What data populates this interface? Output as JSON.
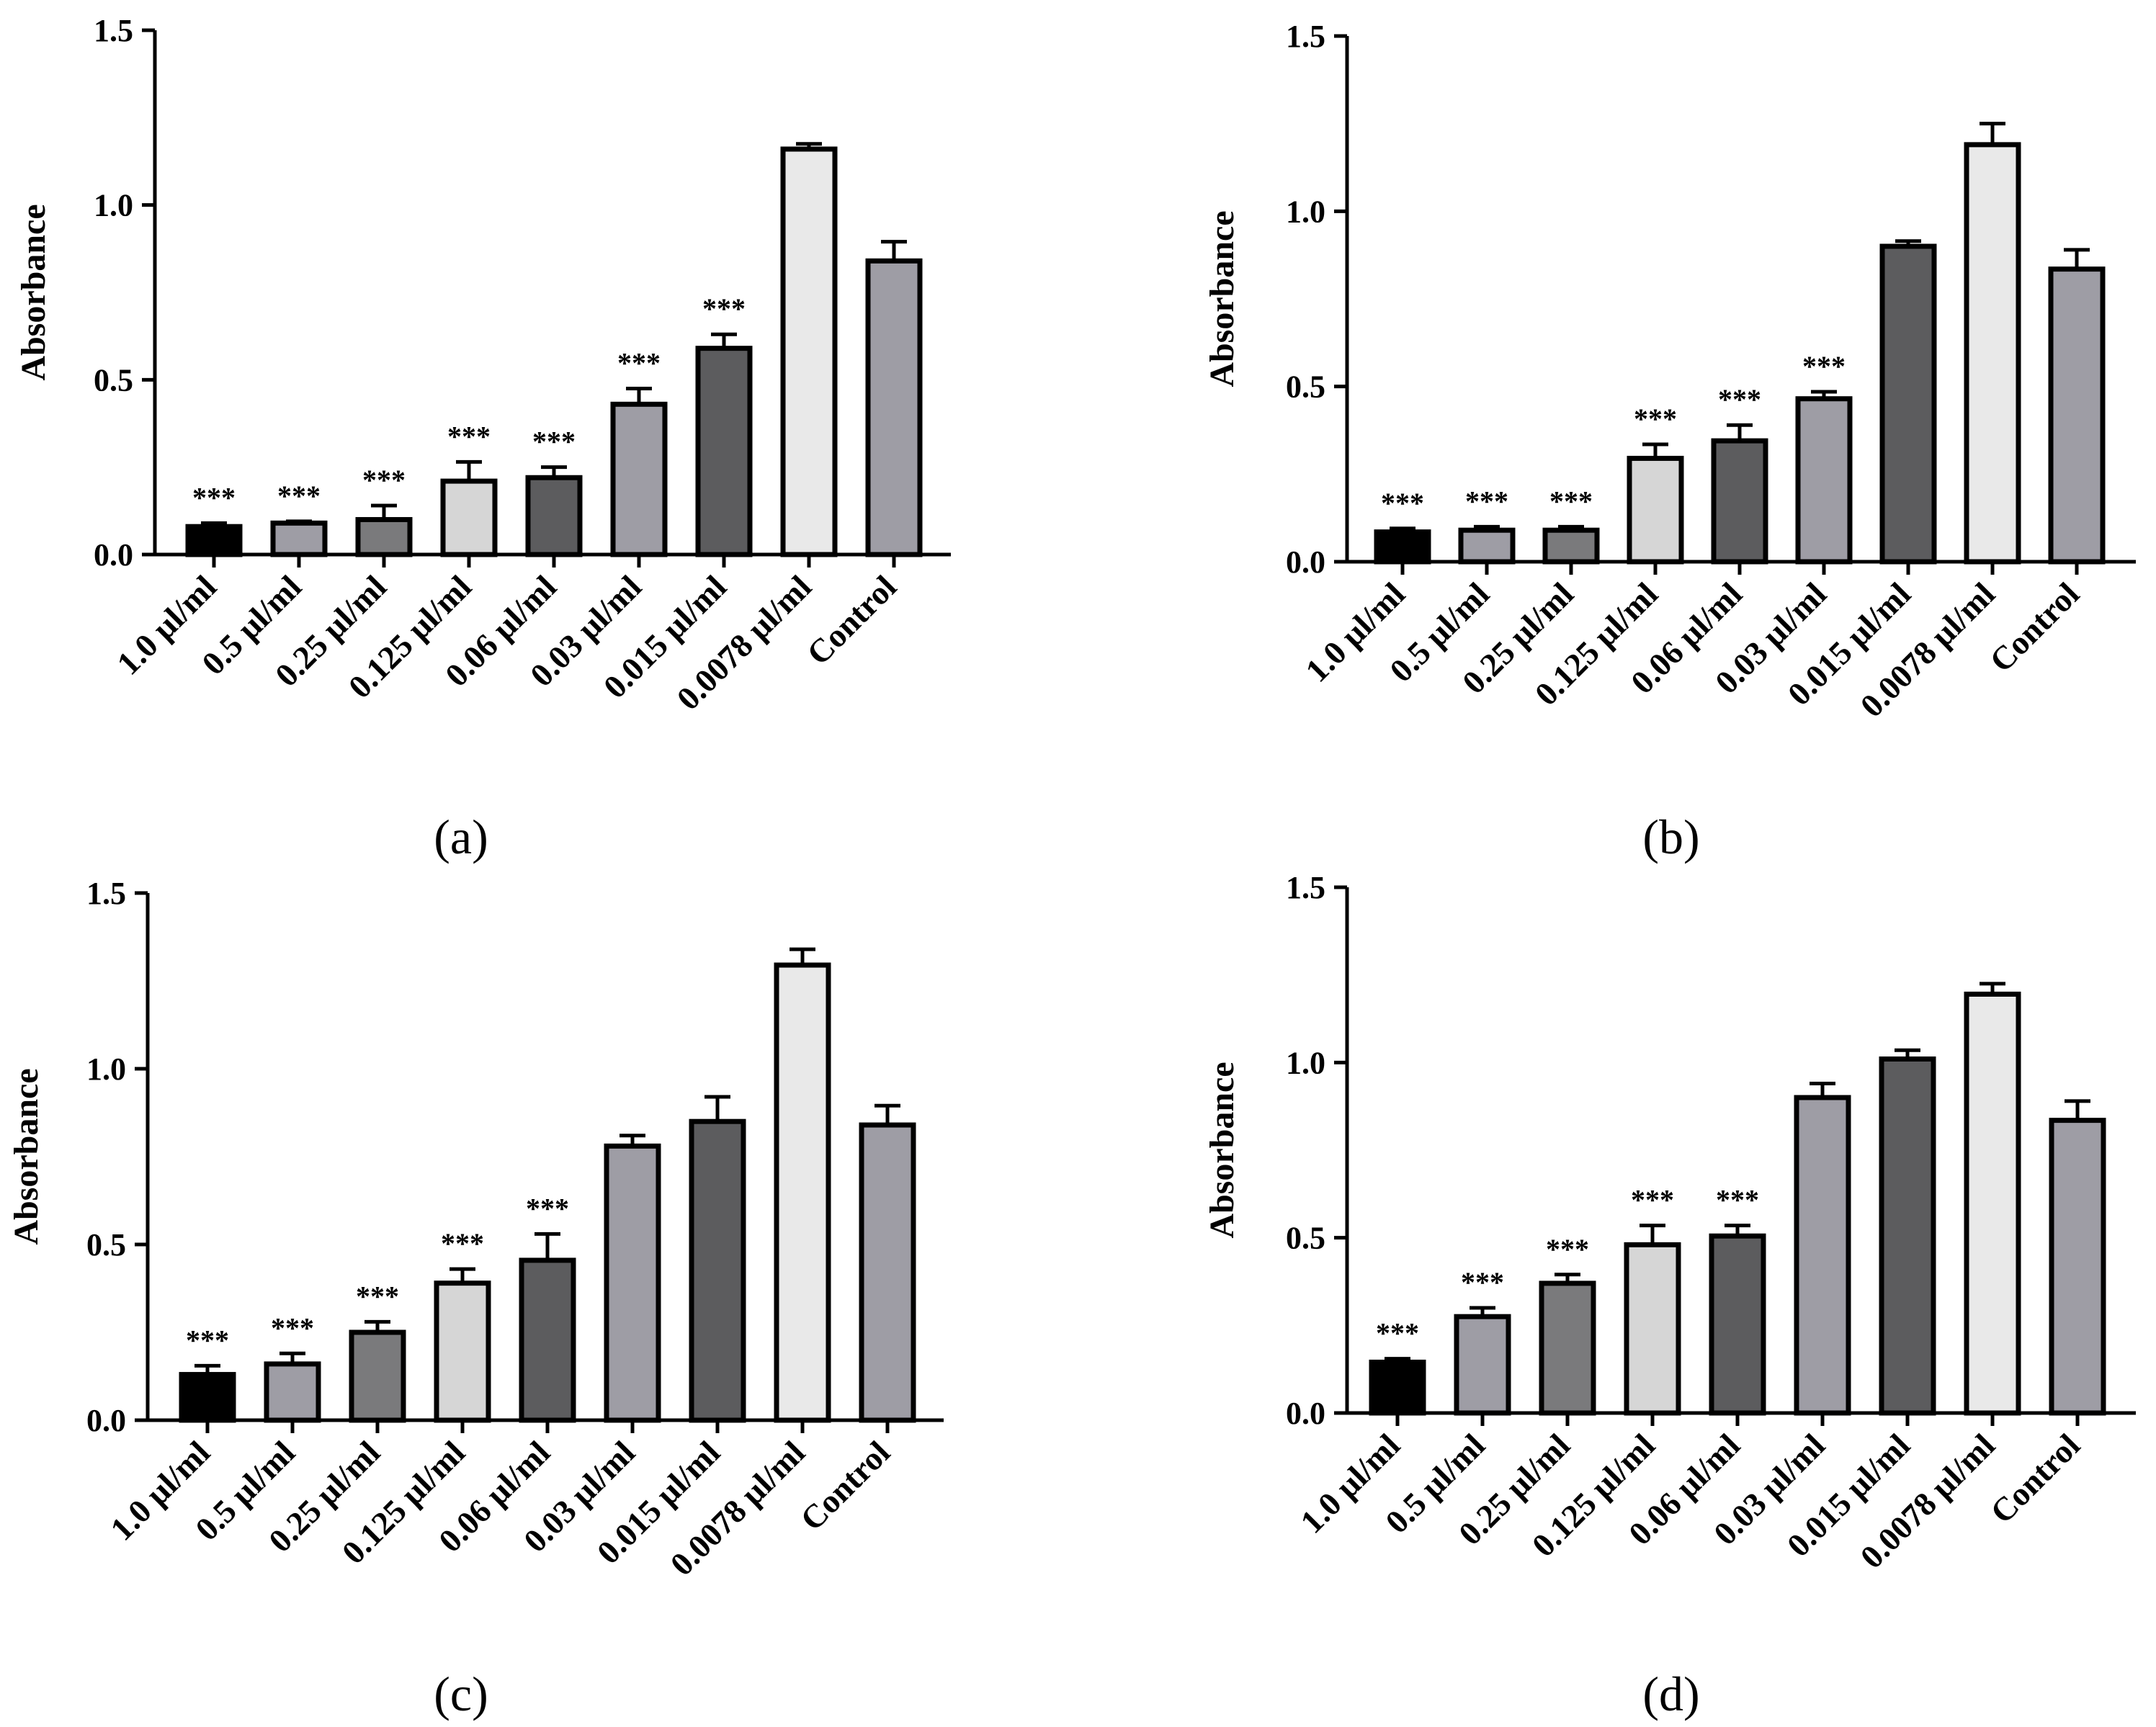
{
  "figure": {
    "colors": {
      "black": "#000000",
      "light_gray": "#9e9da5",
      "mid_gray": "#7a7a7c",
      "very_light": "#d6d6d6",
      "dark_gray": "#5c5c5e",
      "near_white": "#e9e9e9"
    }
  },
  "chart_data": [
    {
      "type": "bar",
      "panel": "(a)",
      "ylabel": "Absorbance",
      "ylim": [
        0,
        1.5
      ],
      "yticks": [
        "0.0",
        "0.5",
        "1.0",
        "1.5"
      ],
      "categories": [
        "1.0 µl/ml",
        "0.5 µl/ml",
        "0.25 µl/ml",
        "0.125 µl/ml",
        "0.06 µl/ml",
        "0.03 µl/ml",
        "0.015 µl/ml",
        "0.0078 µl/ml",
        "Control"
      ],
      "values": [
        0.08,
        0.09,
        0.1,
        0.21,
        0.22,
        0.43,
        0.59,
        1.16,
        0.84
      ],
      "errors": [
        0.01,
        0.005,
        0.04,
        0.055,
        0.03,
        0.045,
        0.04,
        0.015,
        0.055
      ],
      "significance": [
        "***",
        "***",
        "***",
        "***",
        "***",
        "***",
        "***",
        "",
        ""
      ],
      "fills": [
        "black",
        "light_gray",
        "mid_gray",
        "very_light",
        "dark_gray",
        "light_gray",
        "dark_gray",
        "near_white",
        "light_gray"
      ]
    },
    {
      "type": "bar",
      "panel": "(b)",
      "ylabel": "Absorbance",
      "ylim": [
        0,
        1.5
      ],
      "yticks": [
        "0.0",
        "0.5",
        "1.0",
        "1.5"
      ],
      "categories": [
        "1.0 µl/ml",
        "0.5 µl/ml",
        "0.25 µl/ml",
        "0.125 µl/ml",
        "0.06 µl/ml",
        "0.03 µl/ml",
        "0.015 µl/ml",
        "0.0078 µl/ml",
        "Control"
      ],
      "values": [
        0.085,
        0.09,
        0.09,
        0.295,
        0.345,
        0.465,
        0.9,
        1.19,
        0.835
      ],
      "errors": [
        0.01,
        0.01,
        0.01,
        0.04,
        0.045,
        0.02,
        0.015,
        0.06,
        0.055
      ],
      "significance": [
        "***",
        "***",
        "***",
        "***",
        "***",
        "***",
        "",
        "",
        ""
      ],
      "fills": [
        "black",
        "light_gray",
        "mid_gray",
        "very_light",
        "dark_gray",
        "light_gray",
        "dark_gray",
        "near_white",
        "light_gray"
      ]
    },
    {
      "type": "bar",
      "panel": "(c)",
      "ylabel": "Absorbance",
      "ylim": [
        0,
        1.5
      ],
      "yticks": [
        "0.0",
        "0.5",
        "1.0",
        "1.5"
      ],
      "categories": [
        "1.0 µl/ml",
        "0.5 µl/ml",
        "0.25 µl/ml",
        "0.125 µl/ml",
        "0.06 µl/ml",
        "0.03 µl/ml",
        "0.015 µl/ml",
        "0.0078 µl/ml",
        "Control"
      ],
      "values": [
        0.13,
        0.16,
        0.25,
        0.39,
        0.455,
        0.78,
        0.85,
        1.295,
        0.84
      ],
      "errors": [
        0.025,
        0.03,
        0.03,
        0.04,
        0.075,
        0.03,
        0.07,
        0.045,
        0.055
      ],
      "significance": [
        "***",
        "***",
        "***",
        "***",
        "***",
        "",
        "",
        "",
        ""
      ],
      "fills": [
        "black",
        "light_gray",
        "mid_gray",
        "very_light",
        "dark_gray",
        "light_gray",
        "dark_gray",
        "near_white",
        "light_gray"
      ]
    },
    {
      "type": "bar",
      "panel": "(d)",
      "ylabel": "Absorbance",
      "ylim": [
        0,
        1.5
      ],
      "yticks": [
        "0.0",
        "0.5",
        "1.0",
        "1.5"
      ],
      "categories": [
        "1.0 µl/ml",
        "0.5 µl/ml",
        "0.25 µl/ml",
        "0.125 µl/ml",
        "0.06 µl/ml",
        "0.03 µl/ml",
        "0.015 µl/ml",
        "0.0078 µl/ml",
        "Control"
      ],
      "values": [
        0.145,
        0.275,
        0.37,
        0.48,
        0.505,
        0.9,
        1.01,
        1.195,
        0.835
      ],
      "errors": [
        0.01,
        0.025,
        0.025,
        0.055,
        0.03,
        0.04,
        0.025,
        0.03,
        0.055
      ],
      "significance": [
        "***",
        "***",
        "***",
        "***",
        "***",
        "",
        "",
        "",
        ""
      ],
      "fills": [
        "black",
        "light_gray",
        "mid_gray",
        "very_light",
        "dark_gray",
        "light_gray",
        "dark_gray",
        "near_white",
        "light_gray"
      ]
    }
  ]
}
